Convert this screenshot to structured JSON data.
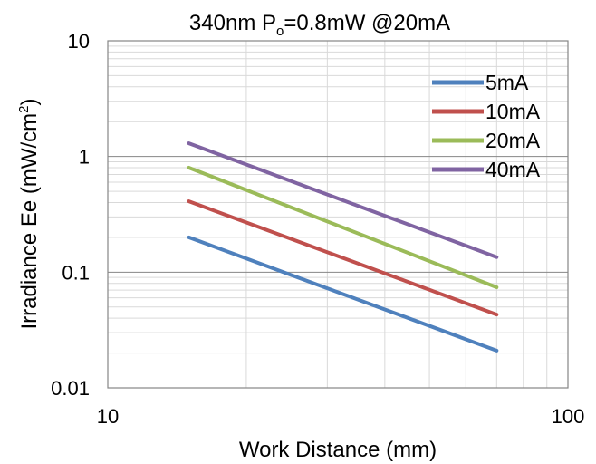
{
  "chart_data": {
    "type": "line",
    "title_main": "340nm P",
    "title_sub": "o",
    "title_rest": "=0.8mW @20mA",
    "xlabel": "Work Distance (mm)",
    "ylabel_main": "Irradiance Ee (mW/cm",
    "ylabel_sup": "2",
    "ylabel_end": ")",
    "x_scale": "log",
    "y_scale": "log",
    "xlim": [
      10,
      100
    ],
    "ylim": [
      0.01,
      10
    ],
    "x_ticks": [
      {
        "value": 10,
        "label": "10"
      },
      {
        "value": 100,
        "label": "100"
      }
    ],
    "y_ticks": [
      {
        "value": 0.01,
        "label": "0.01"
      },
      {
        "value": 0.1,
        "label": "0.1"
      },
      {
        "value": 1,
        "label": "1"
      },
      {
        "value": 10,
        "label": "10"
      }
    ],
    "grid": true,
    "legend_position": "top-right",
    "series": [
      {
        "name": "5mA",
        "color": "#4F81BD",
        "x": [
          15,
          70
        ],
        "y": [
          0.2,
          0.021
        ]
      },
      {
        "name": "10mA",
        "color": "#C0504D",
        "x": [
          15,
          70
        ],
        "y": [
          0.41,
          0.043
        ]
      },
      {
        "name": "20mA",
        "color": "#9BBB59",
        "x": [
          15,
          70
        ],
        "y": [
          0.8,
          0.074
        ]
      },
      {
        "name": "40mA",
        "color": "#8064A2",
        "x": [
          15,
          70
        ],
        "y": [
          1.3,
          0.135
        ]
      }
    ]
  }
}
